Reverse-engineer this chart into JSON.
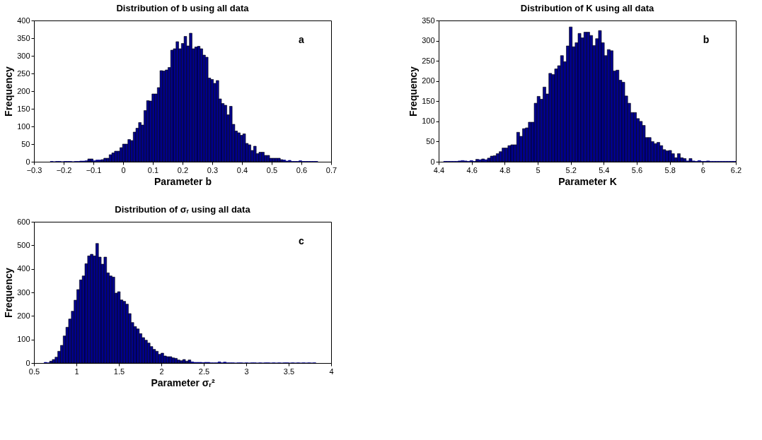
{
  "chart_data": [
    {
      "type": "histogram",
      "title": "Distribution of b using all data",
      "xlabel": "Parameter b",
      "ylabel": "Frequency",
      "color": "#00008b",
      "annotations": [
        "a"
      ],
      "xlim": [
        -0.3,
        0.7
      ],
      "xticks": [
        -0.3,
        -0.2,
        -0.1,
        0,
        0.1,
        0.2,
        0.3,
        0.4,
        0.5,
        0.6,
        0.7
      ],
      "ylim": [
        0,
        400
      ],
      "yticks": [
        0,
        50,
        100,
        150,
        200,
        250,
        300,
        350,
        400
      ],
      "bins": [
        -0.245,
        -0.236,
        -0.227,
        -0.218,
        -0.209,
        -0.2,
        -0.191,
        -0.182,
        -0.173,
        -0.164,
        -0.155,
        -0.146,
        -0.137,
        -0.128,
        -0.119,
        -0.11,
        -0.101,
        -0.092,
        -0.083,
        -0.074,
        -0.065,
        -0.056,
        -0.047,
        -0.038,
        -0.029,
        -0.02,
        -0.011,
        -0.002,
        0.007,
        0.016,
        0.025,
        0.034,
        0.043,
        0.052,
        0.061,
        0.07,
        0.079,
        0.088,
        0.097,
        0.106,
        0.115,
        0.124,
        0.133,
        0.142,
        0.151,
        0.16,
        0.169,
        0.178,
        0.187,
        0.196,
        0.205,
        0.214,
        0.223,
        0.232,
        0.241,
        0.25,
        0.259,
        0.268,
        0.277,
        0.286,
        0.295,
        0.304,
        0.313,
        0.322,
        0.331,
        0.34,
        0.349,
        0.358,
        0.367,
        0.376,
        0.385,
        0.394,
        0.403,
        0.412,
        0.421,
        0.43,
        0.439,
        0.448,
        0.457,
        0.466,
        0.475,
        0.484,
        0.493,
        0.502,
        0.511,
        0.52,
        0.529,
        0.538,
        0.547,
        0.556,
        0.565,
        0.574,
        0.583,
        0.592,
        0.601,
        0.61,
        0.619,
        0.628,
        0.637,
        0.646,
        0.655
      ],
      "values": [
        1,
        0,
        1,
        1,
        0,
        1,
        1,
        1,
        0,
        1,
        1,
        2,
        2,
        3,
        8,
        8,
        3,
        5,
        5,
        6,
        10,
        10,
        20,
        25,
        30,
        30,
        40,
        50,
        50,
        63,
        60,
        84,
        95,
        111,
        104,
        145,
        173,
        172,
        192,
        192,
        210,
        258,
        257,
        260,
        267,
        316,
        320,
        340,
        320,
        335,
        355,
        328,
        364,
        320,
        325,
        327,
        320,
        302,
        296,
        237,
        233,
        222,
        230,
        178,
        165,
        160,
        133,
        157,
        106,
        87,
        82,
        75,
        79,
        52,
        48,
        32,
        44,
        23,
        27,
        27,
        18,
        18,
        10,
        10,
        10,
        10,
        6,
        5,
        2,
        4,
        1,
        1,
        1,
        3,
        1,
        1,
        1,
        1,
        1,
        1
      ]
    },
    {
      "type": "histogram",
      "title": "Distribution of K using all data",
      "xlabel": "Parameter K",
      "ylabel": "Frequency",
      "color": "#00008b",
      "annotations": [
        "b"
      ],
      "xlim": [
        4.4,
        6.2
      ],
      "xticks": [
        4.4,
        4.6,
        4.8,
        5,
        5.2,
        5.4,
        5.6,
        5.8,
        6,
        6.2
      ],
      "ylim": [
        0,
        350
      ],
      "yticks": [
        0,
        50,
        100,
        150,
        200,
        250,
        300,
        350
      ],
      "bins": [
        4.43,
        4.4477,
        4.4654,
        4.4831,
        4.5008,
        4.5185,
        4.5362,
        4.5539,
        4.5716,
        4.5893,
        4.607,
        4.6247,
        4.6424,
        4.6601,
        4.6778,
        4.6955,
        4.7132,
        4.7309,
        4.7486,
        4.7663,
        4.784,
        4.8017,
        4.8194,
        4.8371,
        4.8548,
        4.8725,
        4.8902,
        4.9079,
        4.9256,
        4.9433,
        4.961,
        4.9787,
        4.9964,
        5.0141,
        5.0318,
        5.0495,
        5.0672,
        5.0849,
        5.1026,
        5.1203,
        5.138,
        5.1557,
        5.1734,
        5.1911,
        5.2088,
        5.2265,
        5.2442,
        5.2619,
        5.2796,
        5.2973,
        5.315,
        5.3327,
        5.3504,
        5.3681,
        5.3858,
        5.4035,
        5.4212,
        5.4389,
        5.4566,
        5.4743,
        5.492,
        5.5097,
        5.5274,
        5.5451,
        5.5628,
        5.5805,
        5.5982,
        5.6159,
        5.6336,
        5.6513,
        5.669,
        5.6867,
        5.7044,
        5.7221,
        5.7398,
        5.7575,
        5.7752,
        5.7929,
        5.8106,
        5.8283,
        5.846,
        5.8637,
        5.8814,
        5.8991,
        5.9168,
        5.9345,
        5.9522,
        5.9699,
        5.9876,
        6.0053,
        6.023,
        6.0407,
        6.0584,
        6.0761,
        6.0938,
        6.1115,
        6.1292,
        6.1469,
        6.1646,
        6.1823,
        6.2
      ],
      "values": [
        1,
        1,
        1,
        1,
        1,
        2,
        3,
        2,
        1,
        3,
        1,
        6,
        5,
        7,
        5,
        9,
        14,
        15,
        20,
        25,
        34,
        34,
        40,
        42,
        42,
        73,
        63,
        82,
        84,
        98,
        98,
        145,
        162,
        155,
        185,
        168,
        219,
        216,
        230,
        238,
        263,
        248,
        287,
        334,
        285,
        295,
        318,
        307,
        321,
        321,
        313,
        288,
        305,
        325,
        295,
        263,
        278,
        275,
        225,
        227,
        202,
        197,
        163,
        145,
        122,
        122,
        107,
        100,
        90,
        60,
        60,
        50,
        45,
        48,
        40,
        30,
        27,
        28,
        20,
        10,
        20,
        10,
        8,
        2,
        8,
        2,
        1,
        3,
        1,
        1,
        2,
        1,
        1,
        1,
        1,
        1,
        1,
        1,
        1,
        1
      ]
    },
    {
      "type": "histogram",
      "title": "Distribution of σᵣ using all data",
      "xlabel": "Parameter σᵣ²",
      "ylabel": "Frequency",
      "color": "#00008b",
      "annotations": [
        "c"
      ],
      "xlim": [
        0.5,
        4
      ],
      "xticks": [
        0.5,
        1,
        1.5,
        2,
        2.5,
        3,
        3.5,
        4
      ],
      "ylim": [
        0,
        600
      ],
      "yticks": [
        0,
        100,
        200,
        300,
        400,
        500,
        600
      ],
      "bins": [
        0.62,
        0.652,
        0.684,
        0.716,
        0.748,
        0.78,
        0.812,
        0.844,
        0.876,
        0.908,
        0.94,
        0.972,
        1.004,
        1.036,
        1.068,
        1.1,
        1.132,
        1.164,
        1.196,
        1.228,
        1.26,
        1.292,
        1.324,
        1.356,
        1.388,
        1.42,
        1.452,
        1.484,
        1.516,
        1.548,
        1.58,
        1.612,
        1.644,
        1.676,
        1.708,
        1.74,
        1.772,
        1.804,
        1.836,
        1.868,
        1.9,
        1.932,
        1.964,
        1.996,
        2.028,
        2.06,
        2.092,
        2.124,
        2.156,
        2.188,
        2.22,
        2.252,
        2.284,
        2.316,
        2.348,
        2.38,
        2.412,
        2.444,
        2.476,
        2.508,
        2.54,
        2.572,
        2.604,
        2.636,
        2.668,
        2.7,
        2.732,
        2.764,
        2.796,
        2.828,
        2.86,
        2.892,
        2.924,
        2.956,
        2.988,
        3.02,
        3.052,
        3.084,
        3.116,
        3.148,
        3.18,
        3.212,
        3.244,
        3.276,
        3.308,
        3.34,
        3.372,
        3.404,
        3.436,
        3.468,
        3.5,
        3.532,
        3.564,
        3.596,
        3.628,
        3.66,
        3.692,
        3.724,
        3.756,
        3.788,
        3.82
      ],
      "values": [
        3,
        1,
        8,
        15,
        25,
        50,
        75,
        115,
        152,
        187,
        220,
        267,
        312,
        353,
        370,
        422,
        455,
        462,
        455,
        508,
        450,
        420,
        450,
        383,
        370,
        365,
        297,
        303,
        268,
        262,
        250,
        210,
        172,
        155,
        145,
        125,
        108,
        97,
        85,
        70,
        58,
        50,
        37,
        42,
        30,
        27,
        27,
        22,
        20,
        13,
        10,
        15,
        8,
        13,
        5,
        3,
        3,
        3,
        2,
        3,
        3,
        1,
        1,
        1,
        5,
        1,
        4,
        1,
        1,
        1,
        0,
        1,
        1,
        0,
        1,
        0,
        1,
        1,
        0,
        1,
        0,
        1,
        1,
        0,
        1,
        0,
        1,
        0,
        1,
        1,
        0,
        1,
        0,
        1,
        0,
        1,
        0,
        1,
        0,
        1
      ]
    }
  ]
}
